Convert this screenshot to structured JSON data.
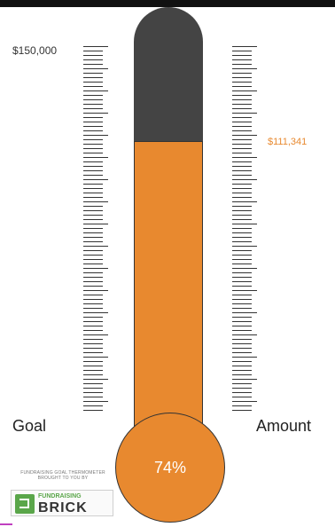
{
  "goal_amount": "$150,000",
  "raised_amount": "$111,341",
  "percent_label": "74%",
  "progress_fraction": 0.74,
  "label_goal": "Goal",
  "label_amount": "Amount",
  "logo": {
    "tagline": "FUNDRAISING GOAL THERMOMETER BROUGHT TO YOU BY",
    "small": "FUNDRAISING",
    "big": "BRICK"
  },
  "colors": {
    "fill": "#e8892f",
    "tube": "#444444",
    "raised_text": "#e8892f"
  },
  "icons": {
    "brand_mark": "fundraising-brick-logo-icon",
    "thermometer": "thermometer-icon"
  }
}
